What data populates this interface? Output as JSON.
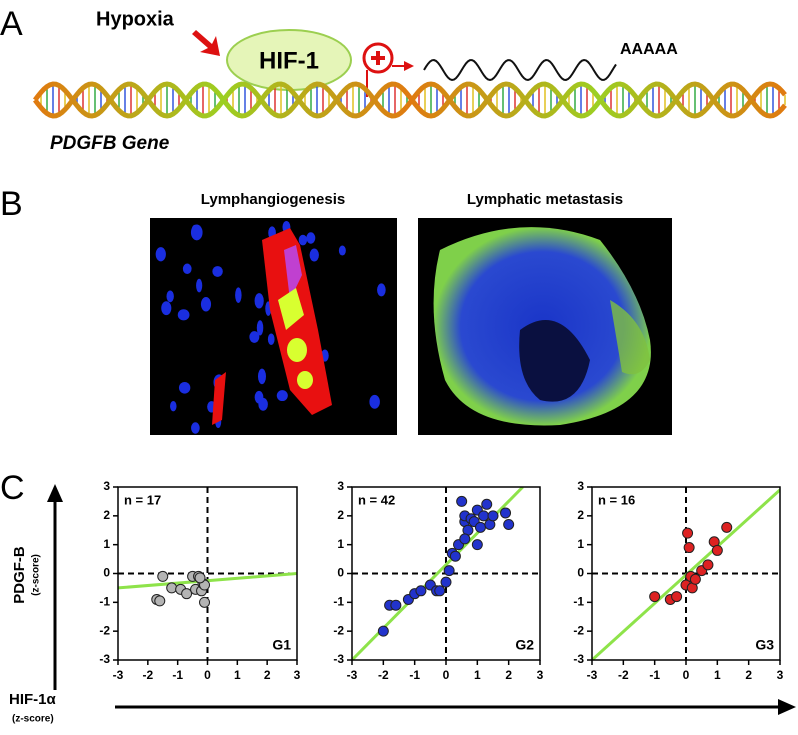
{
  "panel_a": {
    "label": "A",
    "stimulus": "Hypoxia",
    "factor": "HIF-1",
    "poly_a": "AAAAA",
    "gene": "PDGFB Gene"
  },
  "panel_b": {
    "label": "B",
    "titles": [
      "Lymphangiogenesis",
      "Lymphatic metastasis"
    ]
  },
  "panel_c": {
    "label": "C",
    "y_label": "PDGF-B",
    "y_unit": "(z-score)",
    "x_label": "HIF-1α",
    "x_unit": "(z-score)"
  },
  "chart_data": [
    {
      "type": "scatter",
      "annotation": "n = 17",
      "group": "G1",
      "color": "#b4b4b4",
      "x": [
        -1.7,
        -1.6,
        -1.5,
        -1.2,
        -0.9,
        -0.7,
        -0.5,
        -0.4,
        -0.3,
        -0.2,
        -0.15,
        -0.1,
        -0.1,
        -0.25
      ],
      "y": [
        -0.9,
        -0.95,
        -0.1,
        -0.5,
        -0.55,
        -0.7,
        -0.1,
        -0.55,
        -0.1,
        -0.6,
        -0.35,
        -1.0,
        -0.4,
        -0.15
      ],
      "xlim": [
        -3,
        3
      ],
      "ylim": [
        -3,
        3
      ],
      "xticks": [
        -3,
        -2,
        -1,
        0,
        1,
        2,
        3
      ],
      "yticks": [
        -3,
        -2,
        -1,
        0,
        1,
        2,
        3
      ],
      "reference_lines": {
        "x": 0,
        "y": 0
      },
      "fit_line": {
        "x": [
          -3,
          3
        ],
        "y": [
          -0.5,
          0
        ],
        "color": "#8ee34a"
      }
    },
    {
      "type": "scatter",
      "annotation": "n = 42",
      "group": "G2",
      "color": "#2233cc",
      "x": [
        -2.0,
        -1.8,
        -1.6,
        -1.2,
        -1.0,
        -0.8,
        -0.5,
        -0.3,
        -0.2,
        0.0,
        0.1,
        0.2,
        0.3,
        0.4,
        0.5,
        0.6,
        0.6,
        0.7,
        0.8,
        0.9,
        1.0,
        1.1,
        1.2,
        1.3,
        1.4,
        1.5,
        1.9,
        2.0,
        0.6,
        1.0
      ],
      "y": [
        -2.0,
        -1.1,
        -1.1,
        -0.9,
        -0.7,
        -0.6,
        -0.4,
        -0.6,
        -0.6,
        -0.3,
        0.1,
        0.7,
        0.6,
        1.0,
        2.5,
        1.8,
        2.0,
        1.5,
        1.9,
        1.8,
        2.2,
        1.6,
        2.0,
        2.4,
        1.7,
        2.0,
        2.1,
        1.7,
        1.2,
        1.0
      ],
      "xlim": [
        -3,
        3
      ],
      "ylim": [
        -3,
        3
      ],
      "xticks": [
        -3,
        -2,
        -1,
        0,
        1,
        2,
        3
      ],
      "yticks": [
        -3,
        -2,
        -1,
        0,
        1,
        2,
        3
      ],
      "reference_lines": {
        "x": 0,
        "y": 0
      },
      "fit_line": {
        "x": [
          -3,
          2.45
        ],
        "y": [
          -3,
          3
        ],
        "color": "#8ee34a"
      }
    },
    {
      "type": "scatter",
      "annotation": "n = 16",
      "group": "G3",
      "color": "#dd2222",
      "x": [
        -1.0,
        -0.5,
        -0.3,
        0.0,
        0.05,
        0.1,
        0.15,
        0.2,
        0.3,
        0.5,
        0.7,
        0.9,
        1.0,
        1.3
      ],
      "y": [
        -0.8,
        -0.9,
        -0.8,
        -0.4,
        1.4,
        0.9,
        -0.1,
        -0.5,
        -0.2,
        0.1,
        0.3,
        1.1,
        0.8,
        1.6
      ],
      "xlim": [
        -3,
        3
      ],
      "ylim": [
        -3,
        3
      ],
      "xticks": [
        -3,
        -2,
        -1,
        0,
        1,
        2,
        3
      ],
      "yticks": [
        -3,
        -2,
        -1,
        0,
        1,
        2,
        3
      ],
      "reference_lines": {
        "x": 0,
        "y": 0
      },
      "fit_line": {
        "x": [
          -3,
          3
        ],
        "y": [
          -3,
          2.9
        ],
        "color": "#8ee34a"
      }
    }
  ]
}
